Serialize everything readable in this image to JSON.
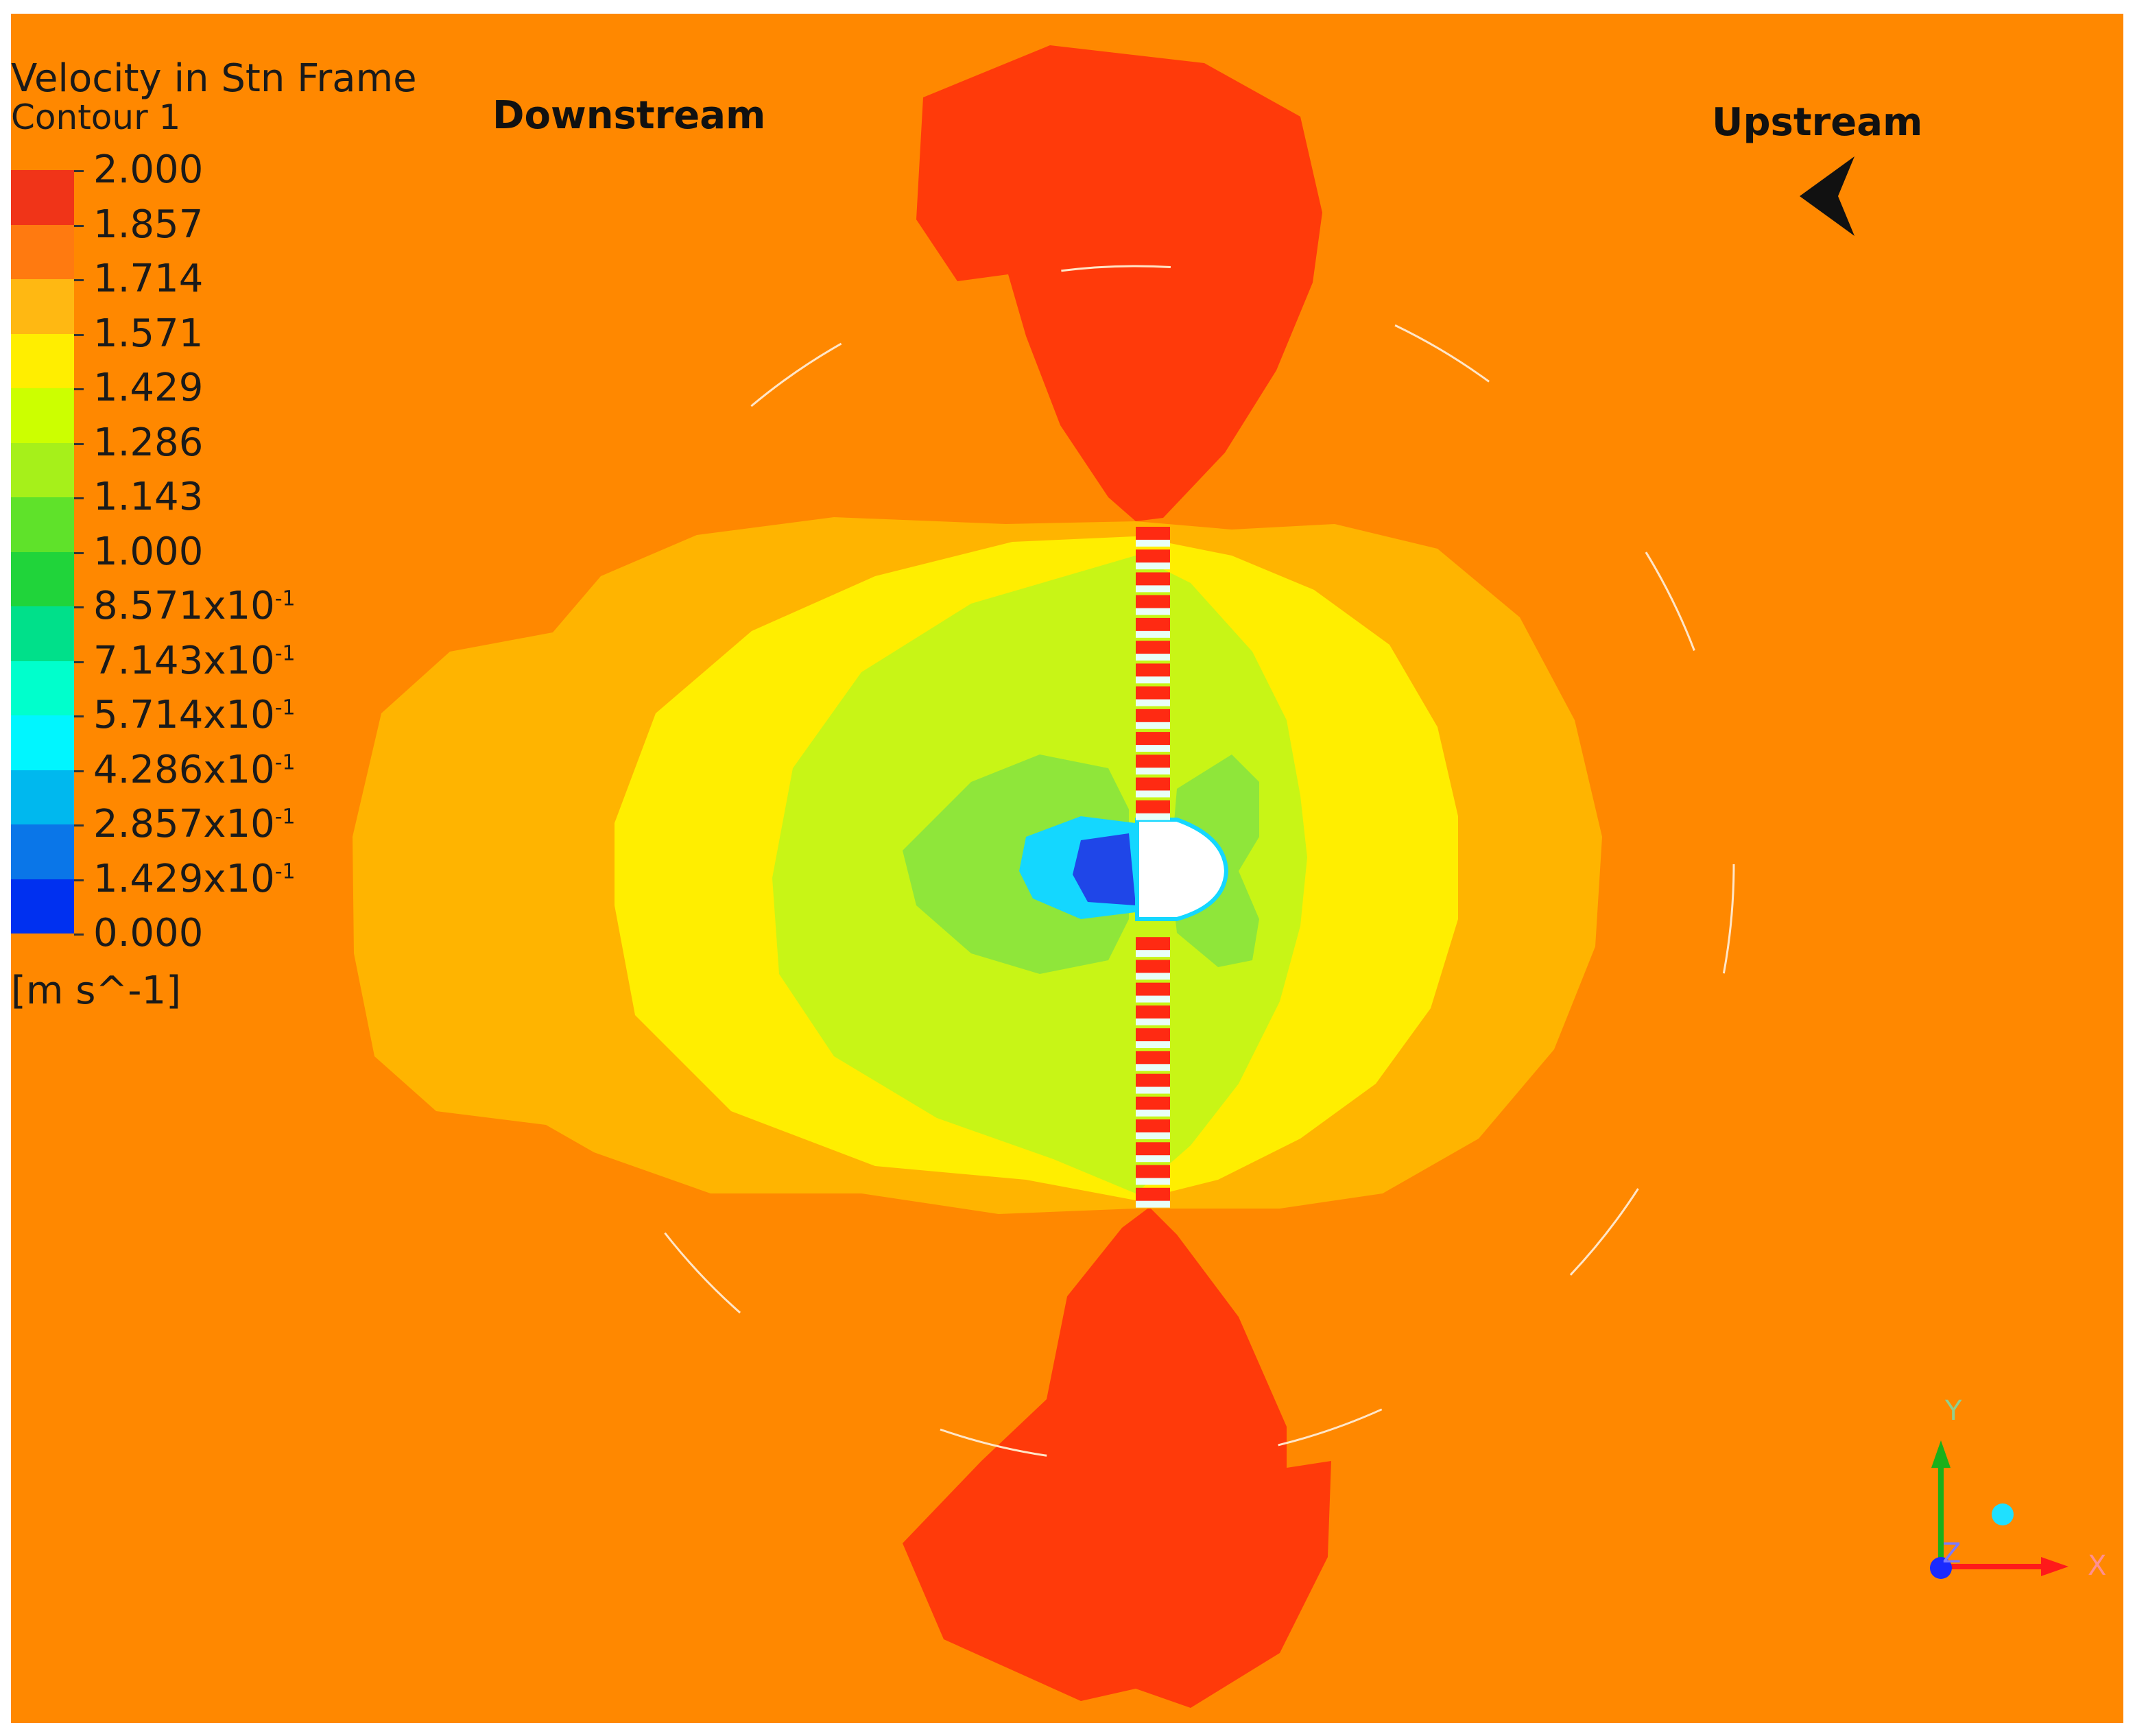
{
  "legend": {
    "title": "Velocity in Stn Frame",
    "subtitle": "Contour 1",
    "unit": "[m s^-1]",
    "ticks": [
      {
        "mantissa": "2.000",
        "exp": ""
      },
      {
        "mantissa": "1.857",
        "exp": ""
      },
      {
        "mantissa": "1.714",
        "exp": ""
      },
      {
        "mantissa": "1.571",
        "exp": ""
      },
      {
        "mantissa": "1.429",
        "exp": ""
      },
      {
        "mantissa": "1.286",
        "exp": ""
      },
      {
        "mantissa": "1.143",
        "exp": ""
      },
      {
        "mantissa": "1.000",
        "exp": ""
      },
      {
        "mantissa": "8.571x10",
        "exp": "-1"
      },
      {
        "mantissa": "7.143x10",
        "exp": "-1"
      },
      {
        "mantissa": "5.714x10",
        "exp": "-1"
      },
      {
        "mantissa": "4.286x10",
        "exp": "-1"
      },
      {
        "mantissa": "2.857x10",
        "exp": "-1"
      },
      {
        "mantissa": "1.429x10",
        "exp": "-1"
      },
      {
        "mantissa": "0.000",
        "exp": ""
      }
    ],
    "band_colors": [
      "#f03418",
      "#ff7a10",
      "#ffb812",
      "#ffee00",
      "#ccff00",
      "#a6f01a",
      "#5fe22a",
      "#20d43a",
      "#00e08a",
      "#00ffcc",
      "#00f6ff",
      "#00b8ee",
      "#0a76e8",
      "#0030f0"
    ]
  },
  "labels": {
    "downstream": "Downstream",
    "upstream": "Upstream"
  },
  "axes": {
    "x": "X",
    "y": "Y",
    "z": "Z"
  },
  "colors": {
    "background_field": "#ff8800",
    "red_lobes": "#ff3a0a",
    "outer_orange": "#ffb400",
    "yellow": "#ffee00",
    "lime": "#c8f516",
    "green": "#8fe63a",
    "cyan": "#14d7ff",
    "blue": "#1f46e8",
    "hub": "#ffffff"
  }
}
